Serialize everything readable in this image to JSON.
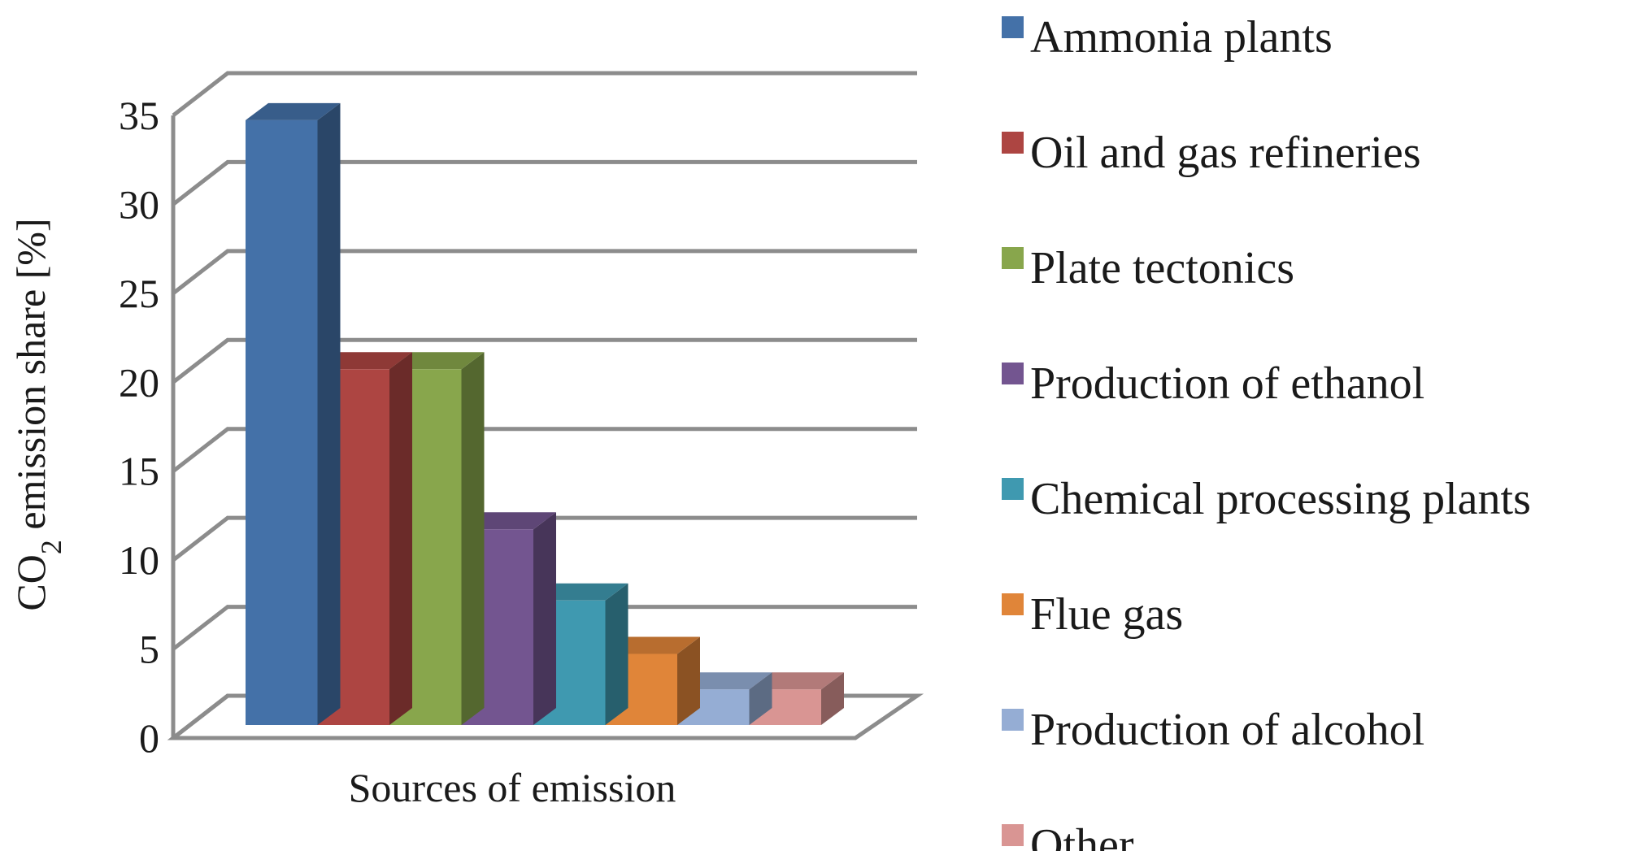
{
  "chart_data": {
    "type": "bar",
    "three_d": true,
    "categories": [
      "Ammonia plants",
      "Oil and gas refineries",
      "Plate tectonics",
      "Production of ethanol",
      "Chemical processing plants",
      "Flue gas",
      "Production of alcohol",
      "Other"
    ],
    "values": [
      34,
      20,
      20,
      11,
      7,
      4,
      2,
      2
    ],
    "colors": [
      "#4471a8",
      "#ad4542",
      "#88a64c",
      "#735590",
      "#3f99b0",
      "#e08539",
      "#95add4",
      "#d99593"
    ],
    "xlabel": "Sources of emission",
    "ylabel": {
      "prefix": "CO",
      "subscript": "2",
      "suffix": " emission share [%]"
    },
    "ylim": [
      0,
      35
    ],
    "yticks": [
      "0",
      "5",
      "10",
      "15",
      "20",
      "25",
      "30",
      "35"
    ],
    "grid": true,
    "legend_position": "right"
  }
}
